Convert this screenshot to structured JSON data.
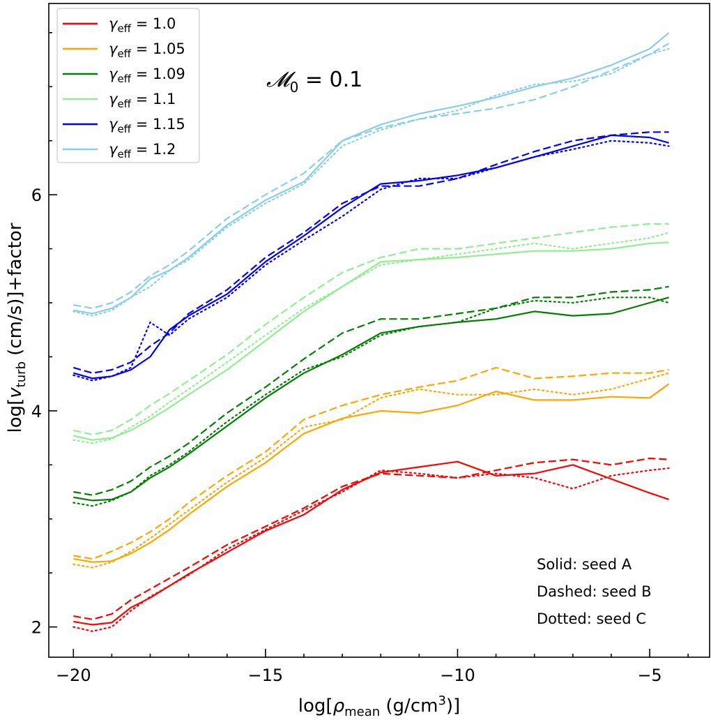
{
  "chart_data": {
    "type": "line",
    "annotation": {
      "main": "𝓜",
      "sub": "0",
      "rest": " = 0.1"
    },
    "xlabel": {
      "pre": "log[",
      "sym": "ρ",
      "sub": "mean",
      "post": " (g/cm",
      "sup": "3",
      "end": ")]"
    },
    "ylabel": {
      "pre": "log[",
      "sym": "v",
      "sub": "turb",
      "post": " (cm/s)]+factor"
    },
    "xlim": [
      -20.64,
      -3.44
    ],
    "ylim": [
      1.72,
      7.77
    ],
    "xticks": [
      -20,
      -15,
      -10,
      -5
    ],
    "xtick_labels": [
      "−20",
      "−15",
      "−10",
      "−5"
    ],
    "yticks": [
      2,
      4,
      6
    ],
    "ytick_labels": [
      "2",
      "4",
      "6"
    ],
    "x_minor_step": 1,
    "y_minor_step": 0.5,
    "grid": false,
    "legend_position": "top-left",
    "style_notes": [
      "Solid: seed A",
      "Dashed: seed B",
      "Dotted: seed C"
    ],
    "x": [
      -20,
      -19.5,
      -19,
      -18.5,
      -18,
      -17.5,
      -17,
      -16,
      -15,
      -14,
      -13,
      -12,
      -11,
      -10,
      -9,
      -8,
      -7,
      -6,
      -5,
      -4.5
    ],
    "groups": [
      {
        "label_main": "γ",
        "label_sub": "eff",
        "label_rest": " = 1.0",
        "color": "#ff0000",
        "seeds": {
          "A": [
            2.05,
            2.02,
            2.04,
            2.18,
            2.27,
            2.38,
            2.49,
            2.69,
            2.89,
            3.04,
            3.27,
            3.43,
            3.48,
            3.53,
            3.4,
            3.42,
            3.5,
            3.37,
            3.24,
            3.18
          ],
          "B": [
            2.1,
            2.07,
            2.12,
            2.25,
            2.35,
            2.45,
            2.55,
            2.76,
            2.93,
            3.1,
            3.3,
            3.42,
            3.4,
            3.38,
            3.45,
            3.52,
            3.55,
            3.5,
            3.56,
            3.55
          ],
          "C": [
            2.0,
            1.96,
            2.0,
            2.15,
            2.28,
            2.38,
            2.48,
            2.72,
            2.9,
            3.08,
            3.25,
            3.45,
            3.42,
            3.38,
            3.42,
            3.38,
            3.28,
            3.4,
            3.45,
            3.47
          ]
        }
      },
      {
        "label_main": "γ",
        "label_sub": "eff",
        "label_rest": " = 1.05",
        "color": "#ffa500",
        "seeds": {
          "A": [
            2.63,
            2.6,
            2.61,
            2.68,
            2.78,
            2.9,
            3.04,
            3.3,
            3.52,
            3.79,
            3.93,
            4.0,
            3.98,
            4.05,
            4.18,
            4.1,
            4.1,
            4.13,
            4.12,
            4.25
          ],
          "B": [
            2.66,
            2.63,
            2.7,
            2.78,
            2.88,
            3.0,
            3.15,
            3.4,
            3.62,
            3.92,
            4.05,
            4.15,
            4.22,
            4.28,
            4.4,
            4.3,
            4.32,
            4.35,
            4.35,
            4.38
          ],
          "C": [
            2.58,
            2.55,
            2.6,
            2.7,
            2.82,
            2.95,
            3.08,
            3.34,
            3.57,
            3.85,
            3.92,
            4.12,
            4.2,
            4.15,
            4.15,
            4.2,
            4.15,
            4.2,
            4.3,
            4.35
          ]
        }
      },
      {
        "label_main": "γ",
        "label_sub": "eff",
        "label_rest": " = 1.09",
        "color": "#008000",
        "seeds": {
          "A": [
            3.2,
            3.17,
            3.18,
            3.25,
            3.38,
            3.48,
            3.6,
            3.86,
            4.12,
            4.35,
            4.52,
            4.72,
            4.78,
            4.82,
            4.85,
            4.92,
            4.88,
            4.9,
            5.0,
            5.05
          ],
          "B": [
            3.25,
            3.22,
            3.27,
            3.35,
            3.48,
            3.58,
            3.7,
            3.98,
            4.22,
            4.48,
            4.72,
            4.85,
            4.85,
            4.9,
            4.95,
            5.05,
            5.05,
            5.1,
            5.12,
            5.15
          ],
          "C": [
            3.15,
            3.12,
            3.17,
            3.25,
            3.4,
            3.5,
            3.62,
            3.9,
            4.15,
            4.38,
            4.5,
            4.7,
            4.78,
            4.82,
            4.95,
            5.02,
            5.0,
            5.05,
            5.05,
            5.0
          ]
        }
      },
      {
        "label_main": "γ",
        "label_sub": "eff",
        "label_rest": " = 1.1",
        "color": "#90ee90",
        "seeds": {
          "A": [
            3.77,
            3.73,
            3.75,
            3.82,
            3.92,
            4.03,
            4.15,
            4.38,
            4.65,
            4.92,
            5.15,
            5.38,
            5.4,
            5.42,
            5.45,
            5.48,
            5.48,
            5.5,
            5.55,
            5.56
          ],
          "B": [
            3.82,
            3.78,
            3.82,
            3.92,
            4.05,
            4.16,
            4.28,
            4.52,
            4.8,
            5.05,
            5.28,
            5.42,
            5.5,
            5.5,
            5.55,
            5.6,
            5.65,
            5.7,
            5.73,
            5.73
          ],
          "C": [
            3.73,
            3.7,
            3.74,
            3.85,
            3.95,
            4.08,
            4.2,
            4.45,
            4.7,
            4.95,
            5.15,
            5.35,
            5.4,
            5.45,
            5.5,
            5.55,
            5.5,
            5.55,
            5.6,
            5.65
          ]
        }
      },
      {
        "label_main": "γ",
        "label_sub": "eff",
        "label_rest": " = 1.15",
        "color": "#0000ff",
        "seeds": {
          "A": [
            4.35,
            4.3,
            4.32,
            4.38,
            4.5,
            4.75,
            4.88,
            5.08,
            5.38,
            5.62,
            5.88,
            6.1,
            6.13,
            6.18,
            6.25,
            6.35,
            6.45,
            6.55,
            6.53,
            6.48
          ],
          "B": [
            4.4,
            4.35,
            4.38,
            4.45,
            4.6,
            4.72,
            4.9,
            5.12,
            5.42,
            5.65,
            5.92,
            6.08,
            6.08,
            6.15,
            6.28,
            6.4,
            6.5,
            6.55,
            6.58,
            6.58
          ],
          "C": [
            4.33,
            4.28,
            4.32,
            4.4,
            4.82,
            4.7,
            4.85,
            5.05,
            5.35,
            5.58,
            5.8,
            6.05,
            6.15,
            6.15,
            6.25,
            6.35,
            6.42,
            6.5,
            6.48,
            6.45
          ]
        }
      },
      {
        "label_main": "γ",
        "label_sub": "eff",
        "label_rest": " = 1.2",
        "color": "#87ceeb",
        "seeds": {
          "A": [
            4.93,
            4.9,
            4.95,
            5.05,
            5.22,
            5.3,
            5.42,
            5.72,
            5.95,
            6.12,
            6.5,
            6.65,
            6.75,
            6.82,
            6.9,
            7.0,
            7.08,
            7.2,
            7.35,
            7.5
          ],
          "B": [
            4.98,
            4.95,
            5.0,
            5.1,
            5.25,
            5.35,
            5.48,
            5.78,
            6.0,
            6.2,
            6.5,
            6.62,
            6.7,
            6.75,
            6.8,
            6.88,
            7.0,
            7.15,
            7.3,
            7.4
          ],
          "C": [
            4.92,
            4.88,
            4.93,
            5.05,
            5.15,
            5.3,
            5.4,
            5.7,
            5.92,
            6.1,
            6.45,
            6.6,
            6.7,
            6.78,
            6.92,
            7.02,
            7.05,
            7.12,
            7.3,
            7.35
          ]
        }
      }
    ]
  }
}
